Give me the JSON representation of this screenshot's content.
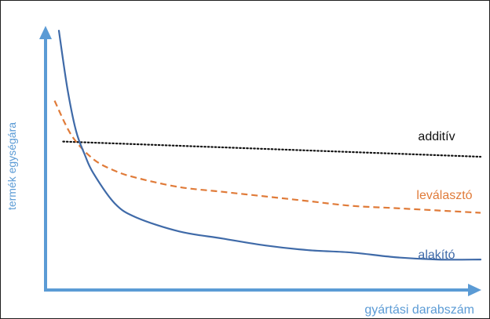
{
  "chart_data": {
    "type": "line",
    "xlabel": "gyártási darabszám",
    "ylabel": "termék egységára",
    "xlim": [
      0,
      1
    ],
    "ylim": [
      0,
      1
    ],
    "grid": false,
    "colors": {
      "axis": "#5b9bd5",
      "alakito": "#3f6aa8",
      "levalaszto": "#e07b39",
      "additiv": "#111111"
    },
    "series": [
      {
        "name": "additív",
        "style": "dotted",
        "x": [
          0.03,
          1.0
        ],
        "y": [
          0.555,
          0.49
        ]
      },
      {
        "name": "leválasztó",
        "style": "dashed",
        "x": [
          0.01,
          0.05,
          0.1,
          0.15,
          0.2,
          0.3,
          0.4,
          0.5,
          0.6,
          0.7,
          0.8,
          0.9,
          1.0
        ],
        "y": [
          0.73,
          0.58,
          0.48,
          0.43,
          0.4,
          0.36,
          0.34,
          0.32,
          0.3,
          0.28,
          0.27,
          0.26,
          0.25
        ]
      },
      {
        "name": "alakító",
        "style": "solid",
        "x": [
          0.02,
          0.04,
          0.06,
          0.08,
          0.1,
          0.15,
          0.2,
          0.3,
          0.4,
          0.5,
          0.6,
          0.7,
          0.8,
          0.9,
          1.0
        ],
        "y": [
          1.03,
          0.78,
          0.6,
          0.5,
          0.42,
          0.29,
          0.23,
          0.17,
          0.14,
          0.11,
          0.09,
          0.08,
          0.06,
          0.05,
          0.05
        ]
      }
    ]
  }
}
